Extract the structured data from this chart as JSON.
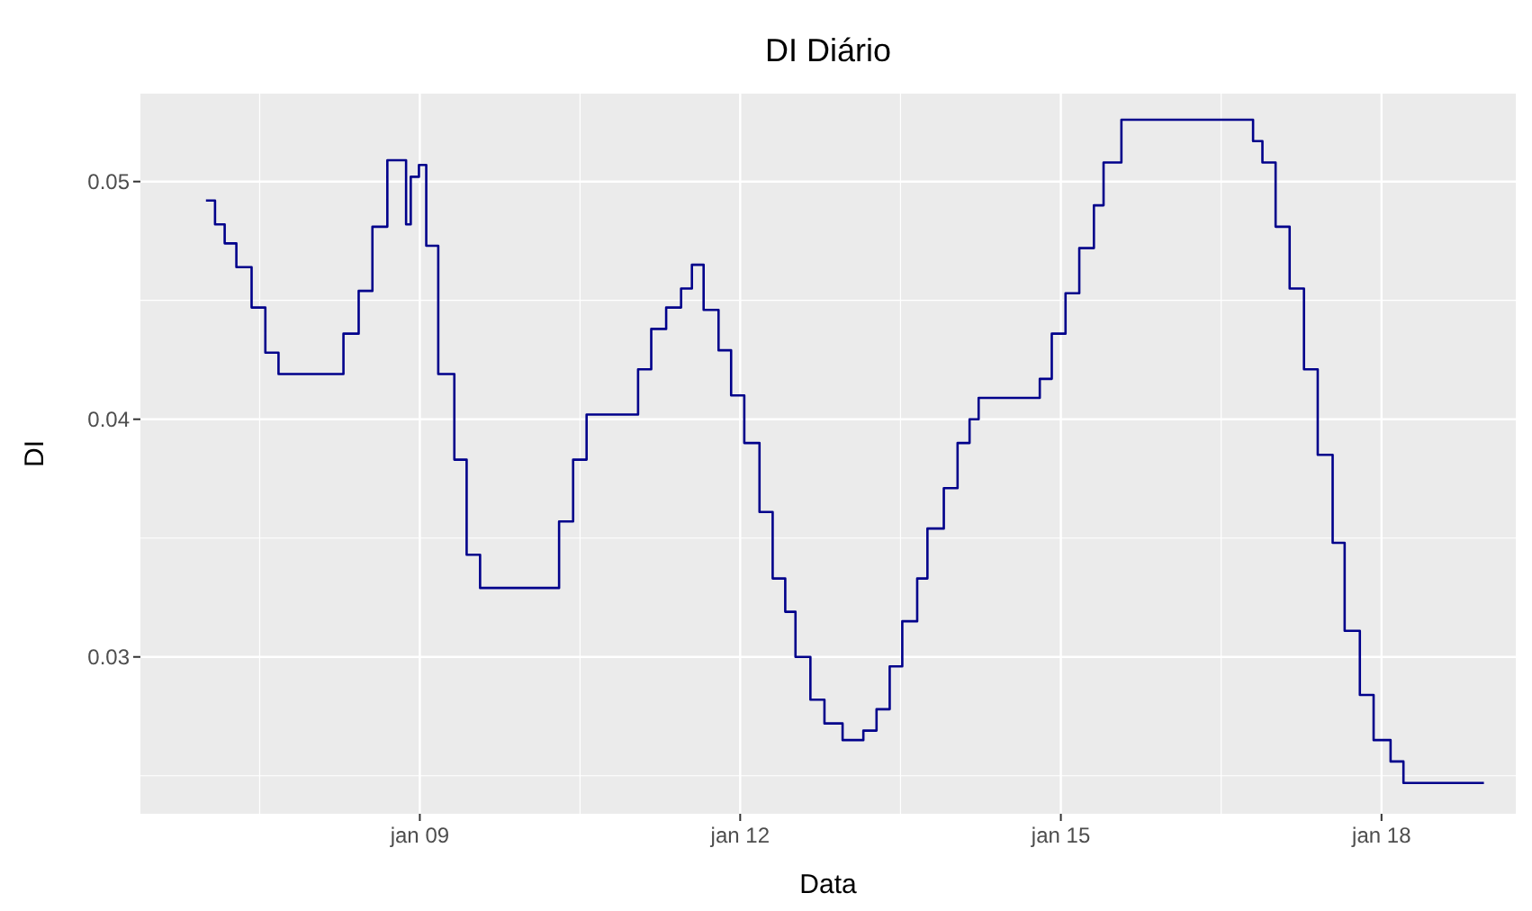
{
  "chart_data": {
    "type": "step",
    "title": "DI Diário",
    "xlabel": "Data",
    "ylabel": "DI",
    "grid": true,
    "xlim": [
      "2006-05-22",
      "2019-04-05"
    ],
    "xticks": [
      {
        "value": "2009-01-01",
        "label": "jan 09"
      },
      {
        "value": "2012-01-01",
        "label": "jan 12"
      },
      {
        "value": "2015-01-01",
        "label": "jan 15"
      },
      {
        "value": "2018-01-01",
        "label": "jan 18"
      }
    ],
    "ylim": [
      0.0234,
      0.0537
    ],
    "yticks": [
      0.03,
      0.04,
      0.05
    ],
    "series": [
      {
        "color": "#00008b",
        "x": [
          "2007-01-01",
          "2007-02-01",
          "2007-03-06",
          "2007-04-15",
          "2007-06-06",
          "2007-07-23",
          "2007-09-06",
          "2008-04-15",
          "2008-06-06",
          "2008-07-23",
          "2008-09-12",
          "2008-11-15",
          "2008-12-01",
          "2008-12-29",
          "2009-01-23",
          "2009-03-05",
          "2009-04-29",
          "2009-06-10",
          "2009-07-26",
          "2010-04-22",
          "2010-06-09",
          "2010-07-25",
          "2011-01-17",
          "2011-03-03",
          "2011-04-23",
          "2011-06-13",
          "2011-07-20",
          "2011-08-29",
          "2011-10-19",
          "2011-12-01",
          "2012-01-15",
          "2012-03-07",
          "2012-04-21",
          "2012-06-03",
          "2012-07-08",
          "2012-08-28",
          "2012-10-15",
          "2012-12-16",
          "2013-02-25",
          "2013-04-11",
          "2013-05-26",
          "2013-07-08",
          "2013-08-28",
          "2013-10-02",
          "2013-11-27",
          "2014-01-13",
          "2014-02-23",
          "2014-03-26",
          "2014-10-21",
          "2014-12-01",
          "2015-01-17",
          "2015-03-05",
          "2015-04-24",
          "2015-05-27",
          "2015-07-27",
          "2016-10-19",
          "2016-11-20",
          "2017-01-04",
          "2017-02-21",
          "2017-04-11",
          "2017-05-28",
          "2017-07-18",
          "2017-08-28",
          "2017-10-19",
          "2017-12-05",
          "2018-02-01",
          "2018-03-17",
          "2018-12-17"
        ],
        "values": [
          0.0492,
          0.0482,
          0.0474,
          0.0464,
          0.0447,
          0.0428,
          0.0419,
          0.0436,
          0.0454,
          0.0481,
          0.0509,
          0.0482,
          0.0502,
          0.0507,
          0.0473,
          0.0419,
          0.0383,
          0.0343,
          0.0329,
          0.0357,
          0.0383,
          0.0402,
          0.0421,
          0.0438,
          0.0447,
          0.0455,
          0.0465,
          0.0446,
          0.0429,
          0.041,
          0.039,
          0.0361,
          0.0333,
          0.0319,
          0.03,
          0.0282,
          0.0272,
          0.0265,
          0.0269,
          0.0278,
          0.0296,
          0.0315,
          0.0333,
          0.0354,
          0.0371,
          0.039,
          0.04,
          0.0409,
          0.0417,
          0.0436,
          0.0453,
          0.0472,
          0.049,
          0.0508,
          0.0526,
          0.0517,
          0.0508,
          0.0481,
          0.0455,
          0.0421,
          0.0385,
          0.0348,
          0.0311,
          0.0284,
          0.0265,
          0.0256,
          0.0247,
          0.0247
        ]
      }
    ]
  }
}
